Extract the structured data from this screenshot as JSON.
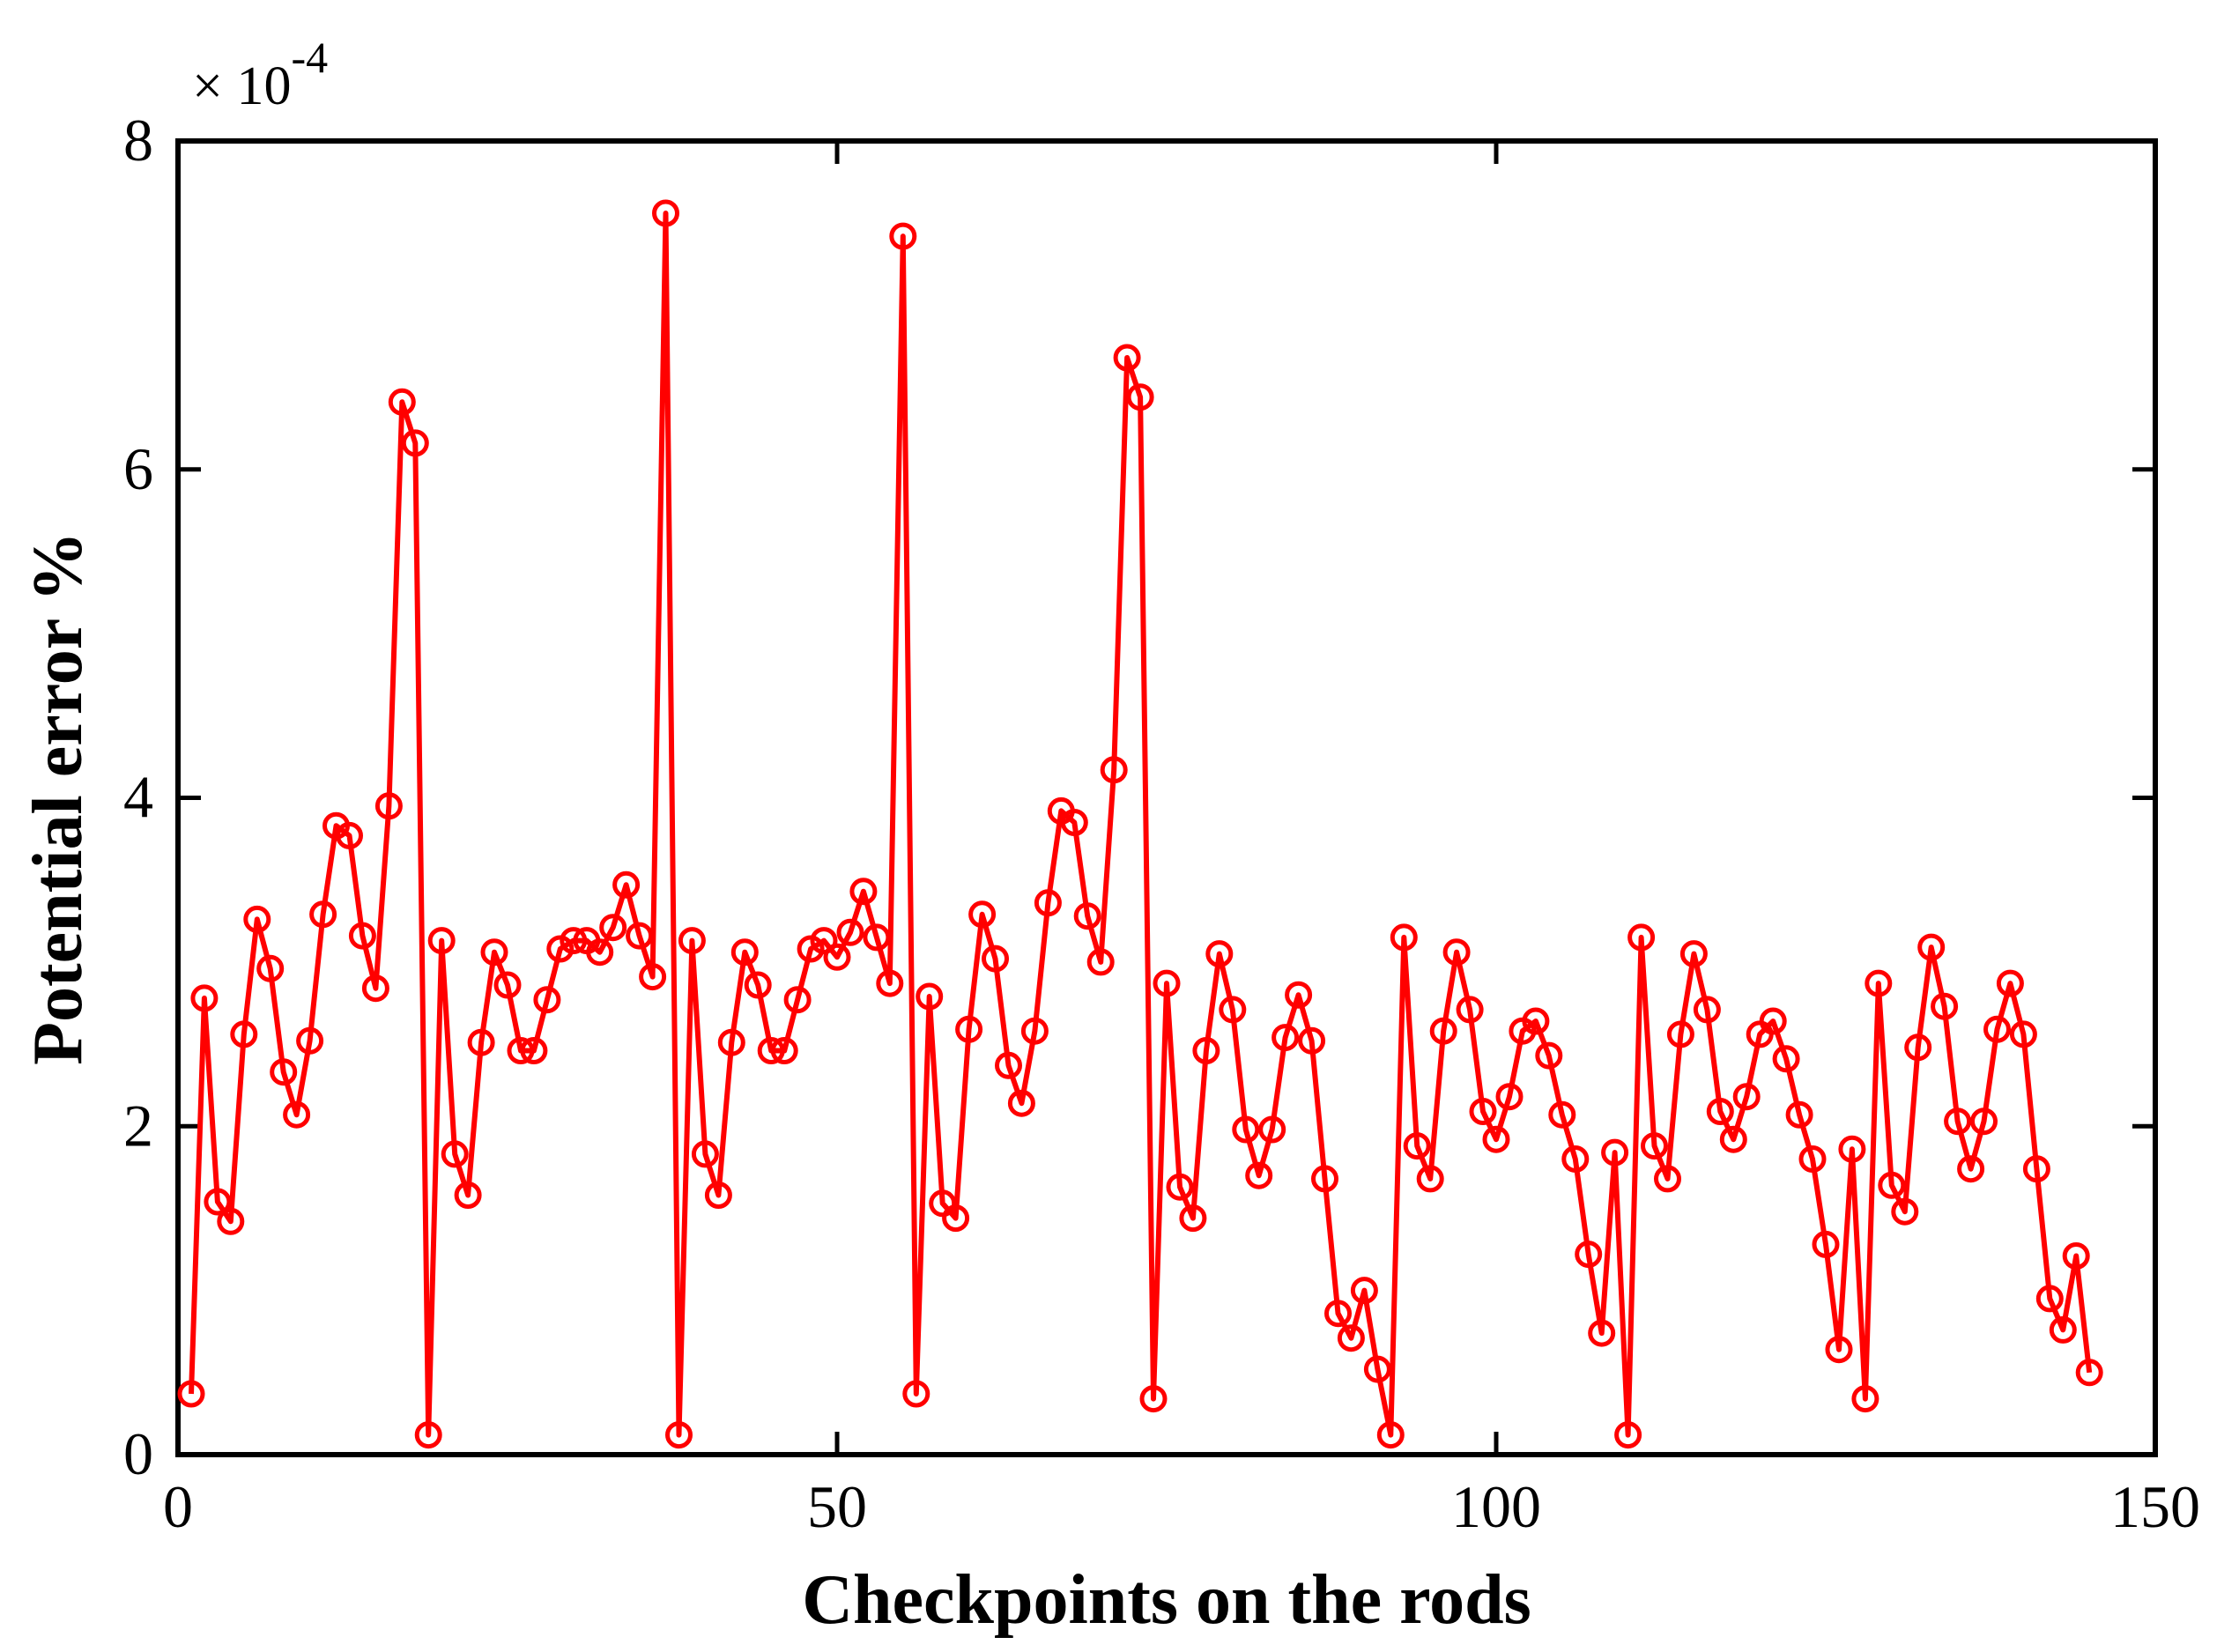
{
  "chart_data": {
    "type": "line",
    "title": "",
    "xlabel": "Checkpoints on the rods",
    "ylabel": "Potential error %",
    "xlim": [
      0,
      150
    ],
    "ylim": [
      0,
      8
    ],
    "y_multiplier": "× 10",
    "y_multiplier_exponent": "-4",
    "xticks": [
      0,
      50,
      100,
      150
    ],
    "xtick_labels": [
      "0",
      "50",
      "100",
      "150"
    ],
    "yticks": [
      0,
      2,
      4,
      6,
      8
    ],
    "ytick_labels": [
      "0",
      "2",
      "4",
      "6",
      "8"
    ],
    "grid": false,
    "legend": "none",
    "marker": "circle",
    "series": [
      {
        "color": "#ff0000",
        "x": [
          1,
          2,
          3,
          4,
          5,
          6,
          7,
          8,
          9,
          10,
          11,
          12,
          13,
          14,
          15,
          16,
          17,
          18,
          19,
          20,
          21,
          22,
          23,
          24,
          25,
          26,
          27,
          28,
          29,
          30,
          31,
          32,
          33,
          34,
          35,
          36,
          37,
          38,
          39,
          40,
          41,
          42,
          43,
          44,
          45,
          46,
          47,
          48,
          49,
          50,
          51,
          52,
          53,
          54,
          55,
          56,
          57,
          58,
          59,
          60,
          61,
          62,
          63,
          64,
          65,
          66,
          67,
          68,
          69,
          70,
          71,
          72,
          73,
          74,
          75,
          76,
          77,
          78,
          79,
          80,
          81,
          82,
          83,
          84,
          85,
          86,
          87,
          88,
          89,
          90,
          91,
          92,
          93,
          94,
          95,
          96,
          97,
          98,
          99,
          100,
          101,
          102,
          103,
          104,
          105,
          106,
          107,
          108,
          109,
          110,
          111,
          112,
          113,
          114,
          115,
          116,
          117,
          118,
          119,
          120,
          121,
          122,
          123,
          124,
          125,
          126,
          127,
          128,
          129,
          130,
          131,
          132,
          133,
          134,
          135,
          136,
          137,
          138,
          139,
          140,
          141,
          142,
          143,
          144,
          145
        ],
        "y": [
          0.37,
          2.78,
          1.54,
          1.42,
          2.56,
          3.26,
          2.96,
          2.33,
          2.07,
          2.52,
          3.29,
          3.83,
          3.77,
          3.16,
          2.84,
          3.95,
          6.41,
          6.16,
          0.12,
          3.13,
          1.83,
          1.58,
          2.51,
          3.06,
          2.86,
          2.46,
          2.46,
          2.77,
          3.08,
          3.13,
          3.13,
          3.06,
          3.21,
          3.47,
          3.16,
          2.91,
          7.56,
          0.12,
          3.13,
          1.83,
          1.58,
          2.51,
          3.06,
          2.86,
          2.46,
          2.46,
          2.77,
          3.08,
          3.13,
          3.03,
          3.18,
          3.43,
          3.15,
          2.87,
          7.42,
          0.37,
          2.79,
          1.53,
          1.44,
          2.59,
          3.29,
          3.02,
          2.37,
          2.14,
          2.58,
          3.36,
          3.92,
          3.85,
          3.28,
          3.0,
          4.17,
          6.68,
          6.44,
          0.34,
          2.87,
          1.63,
          1.44,
          2.46,
          3.05,
          2.71,
          1.98,
          1.7,
          1.98,
          2.54,
          2.8,
          2.52,
          1.68,
          0.86,
          0.71,
          1.0,
          0.52,
          0.12,
          3.15,
          1.88,
          1.68,
          2.58,
          3.06,
          2.71,
          2.09,
          1.92,
          2.18,
          2.58,
          2.64,
          2.43,
          2.07,
          1.8,
          1.22,
          0.74,
          1.84,
          0.12,
          3.15,
          1.88,
          1.68,
          2.56,
          3.05,
          2.71,
          2.09,
          1.92,
          2.18,
          2.56,
          2.64,
          2.41,
          2.07,
          1.8,
          1.28,
          0.64,
          1.86,
          0.34,
          2.87,
          1.64,
          1.48,
          2.48,
          3.09,
          2.73,
          2.03,
          1.74,
          2.03,
          2.59,
          2.87,
          2.56,
          1.74,
          0.95,
          0.76,
          1.21,
          0.5
        ]
      }
    ]
  }
}
